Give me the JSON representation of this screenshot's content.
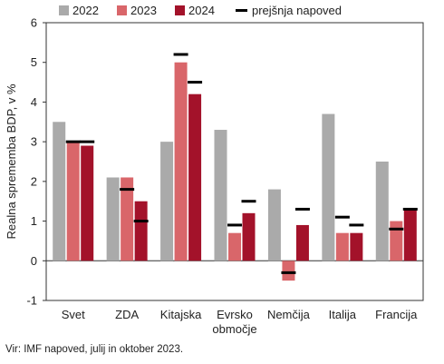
{
  "chart_data": {
    "type": "bar",
    "ylabel": "Realna sprememba BDP, v %",
    "ylim": [
      -1,
      6
    ],
    "yticks": [
      -1,
      0,
      1,
      2,
      3,
      4,
      5,
      6
    ],
    "grid": false,
    "legend_position": "top",
    "categories": [
      "Svet",
      "ZDA",
      "Kitajska",
      "Evrsko območje",
      "Nemčija",
      "Italija",
      "Francija"
    ],
    "category_labels": [
      [
        "Svet"
      ],
      [
        "ZDA"
      ],
      [
        "Kitajska"
      ],
      [
        "Evrsko",
        "območje"
      ],
      [
        "Nemčija"
      ],
      [
        "Italija"
      ],
      [
        "Francija"
      ]
    ],
    "series": [
      {
        "name": "2022",
        "color": "#aaaaaa",
        "values": [
          3.5,
          2.1,
          3.0,
          3.3,
          1.8,
          3.7,
          2.5
        ]
      },
      {
        "name": "2023",
        "color": "#d9666a",
        "values": [
          3.0,
          2.1,
          5.0,
          0.7,
          -0.5,
          0.7,
          1.0
        ]
      },
      {
        "name": "2024",
        "color": "#a3122a",
        "values": [
          2.9,
          1.5,
          4.2,
          1.2,
          0.9,
          0.7,
          1.3
        ]
      }
    ],
    "previous_forecast": {
      "name": "prejšnja napoved",
      "color": "#000000",
      "values_2023": [
        3.0,
        1.8,
        5.2,
        0.9,
        -0.3,
        1.1,
        0.8
      ],
      "values_2024": [
        3.0,
        1.0,
        4.5,
        1.5,
        1.3,
        0.9,
        1.3
      ]
    }
  },
  "source_note": "Vir: IMF napoved, julij in oktober 2023."
}
